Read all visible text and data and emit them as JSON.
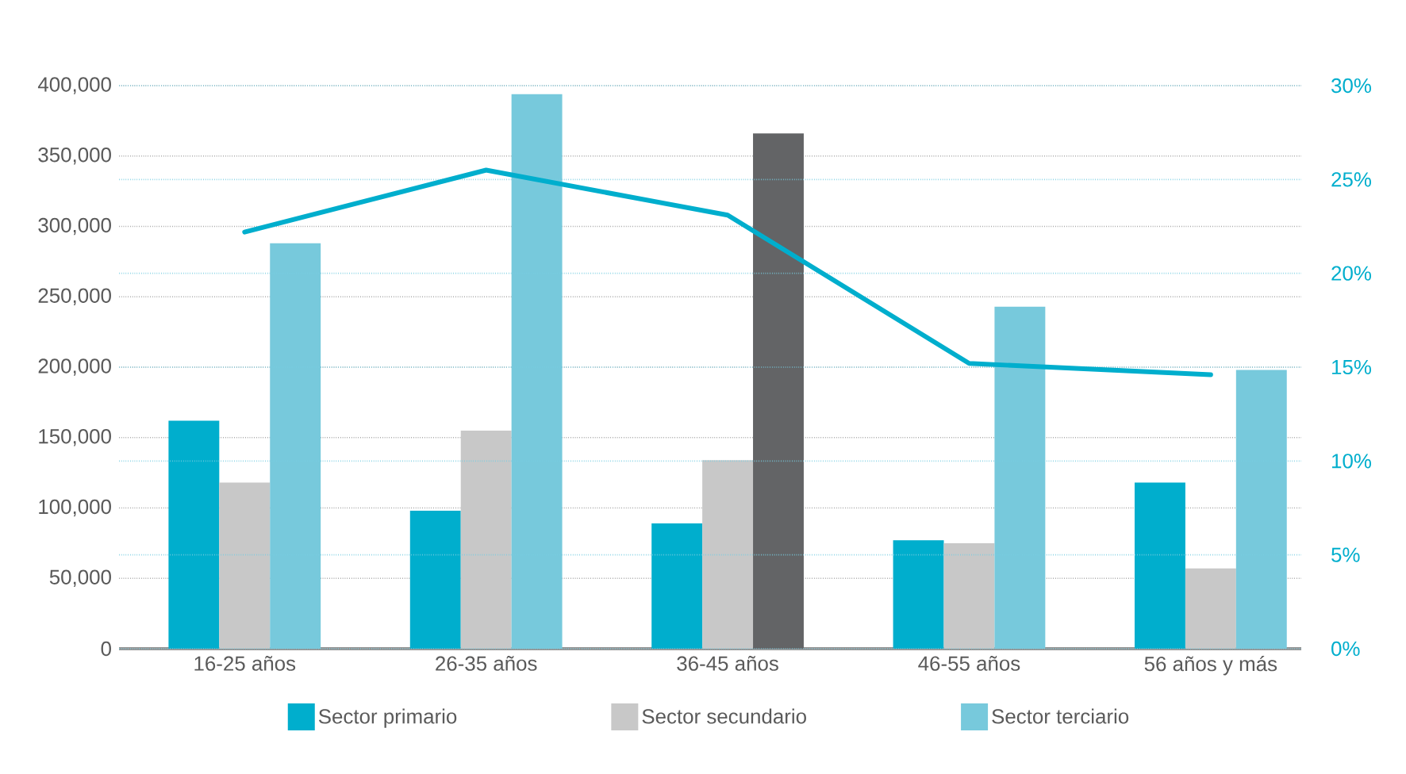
{
  "chart_data": {
    "type": "bar",
    "categories": [
      "16-25 años",
      "26-35 años",
      "36-45 años",
      "46-55 años",
      "56 años y más"
    ],
    "series": [
      {
        "name": "Sector primario",
        "color": "#00aecd",
        "values": [
          162000,
          98000,
          89000,
          77000,
          118000
        ]
      },
      {
        "name": "Sector secundario",
        "color": "#c8c8c8",
        "values": [
          118000,
          155000,
          134000,
          75000,
          57000
        ]
      },
      {
        "name": "Sector terciario",
        "color": "#77c9dc",
        "colors": [
          "#77c9dc",
          "#77c9dc",
          "#636466",
          "#77c9dc",
          "#77c9dc"
        ],
        "values": [
          288000,
          394000,
          366000,
          243000,
          198000
        ]
      },
      {
        "type": "line",
        "axis": "y2",
        "color": "#00aecd",
        "values": [
          22.2,
          25.5,
          23.1,
          15.2,
          14.6
        ]
      }
    ],
    "ylim": [
      0,
      400000
    ],
    "yticks": [
      0,
      {
        "value": 50000,
        "label": "50,000"
      },
      {
        "value": 100000,
        "label": "100,000"
      },
      {
        "value": 150000,
        "label": "150,000"
      },
      {
        "value": 200000,
        "label": "200,000"
      },
      {
        "value": 250000,
        "label": "250,000"
      },
      {
        "value": 300000,
        "label": "300,000"
      },
      {
        "value": 350000,
        "label": "350,000"
      },
      {
        "value": 400000,
        "label": "400,000"
      }
    ],
    "y2lim": [
      0,
      30
    ],
    "y2ticks": [
      {
        "value": 0,
        "label": "0%"
      },
      {
        "value": 5,
        "label": "5%"
      },
      {
        "value": 10,
        "label": "10%"
      },
      {
        "value": 15,
        "label": "15%"
      },
      {
        "value": 20,
        "label": "20%"
      },
      {
        "value": 25,
        "label": "25%"
      },
      {
        "value": 30,
        "label": "30%"
      }
    ],
    "grid": true,
    "legend": "bottom"
  }
}
